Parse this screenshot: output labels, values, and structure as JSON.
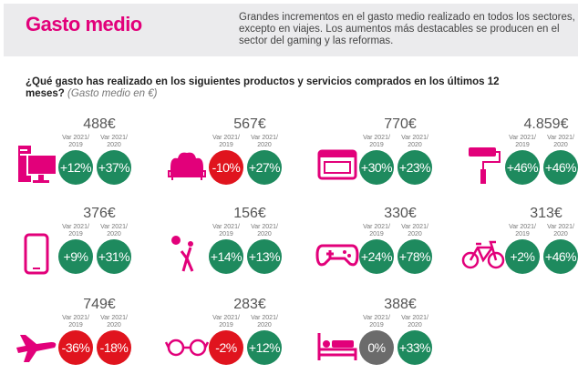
{
  "header": {
    "title": "Gasto medio",
    "description": "Grandes incrementos en el gasto medio realizado en todos los sectores, excepto en viajes. Los aumentos más destacables se producen en el sector del gaming y las reformas."
  },
  "question": {
    "text": "¿Qué gasto has realizado en los siguientes productos y servicios comprados en los últimos 12 meses?",
    "note": "(Gasto medio en €)"
  },
  "labels": {
    "var1": "Var 2021/ 2019",
    "var2": "Var 2021/ 2020"
  },
  "colors": {
    "positive": "#1e8a5e",
    "negative": "#e0141e",
    "neutral": "#6b6b6b",
    "icon": "#e2007a"
  },
  "items": [
    {
      "icon": "computer-icon",
      "value": "488€",
      "var2019": "+12%",
      "var2020": "+37%"
    },
    {
      "icon": "sofa-icon",
      "value": "567€",
      "var2019": "-10%",
      "var2020": "+27%"
    },
    {
      "icon": "oven-icon",
      "value": "770€",
      "var2019": "+30%",
      "var2020": "+23%"
    },
    {
      "icon": "paint-roller-icon",
      "value": "4.859€",
      "var2019": "+46%",
      "var2020": "+46%"
    },
    {
      "icon": "smartphone-icon",
      "value": "376€",
      "var2019": "+9%",
      "var2020": "+31%"
    },
    {
      "icon": "sports-icon",
      "value": "156€",
      "var2019": "+14%",
      "var2020": "+13%"
    },
    {
      "icon": "gamepad-icon",
      "value": "330€",
      "var2019": "+24%",
      "var2020": "+78%"
    },
    {
      "icon": "bicycle-icon",
      "value": "313€",
      "var2019": "+2%",
      "var2020": "+46%"
    },
    {
      "icon": "airplane-icon",
      "value": "749€",
      "var2019": "-36%",
      "var2020": "-18%"
    },
    {
      "icon": "glasses-icon",
      "value": "283€",
      "var2019": "-2%",
      "var2020": "+12%"
    },
    {
      "icon": "bed-icon",
      "value": "388€",
      "var2019": "0%",
      "var2020": "+33%"
    }
  ]
}
